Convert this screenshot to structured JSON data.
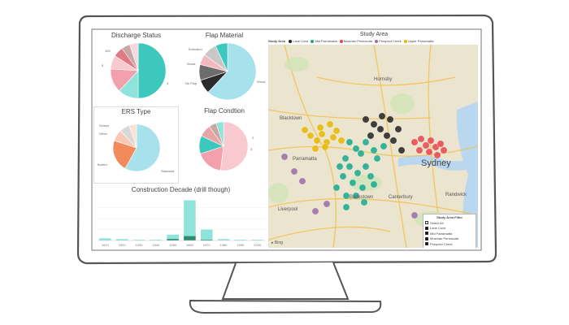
{
  "dashboard": {
    "discharge_status": {
      "title": "Discharge Status",
      "labels": [
        "100",
        "5",
        "4"
      ],
      "slice_colors": [
        "#3cc8bd",
        "#8ee3db",
        "#f2a0ab",
        "#f8c9cf",
        "#e07b85",
        "#c9a7a5",
        "#f3d9dd"
      ],
      "shares": [
        0.5,
        0.12,
        0.14,
        0.08,
        0.06,
        0.05,
        0.05
      ]
    },
    "flap_material": {
      "title": "Flap Material",
      "labels": [
        "Extrusion",
        "Wood",
        "No Flap",
        "Wood"
      ],
      "slice_colors": [
        "#a7e1ec",
        "#2b2b2b",
        "#6d6d6d",
        "#f2b8be",
        "#c8c8c8",
        "#3cc8bd"
      ],
      "shares": [
        0.62,
        0.08,
        0.09,
        0.06,
        0.08,
        0.07
      ]
    },
    "ers_type": {
      "title": "ERS Type",
      "labels": [
        "Gravel",
        "Other",
        "Standard",
        "Buried"
      ],
      "slice_colors": [
        "#a7e1ec",
        "#f38a5c",
        "#f8c9b6",
        "#d9d9d9",
        "#fbe0d4"
      ],
      "shares": [
        0.58,
        0.22,
        0.08,
        0.07,
        0.05
      ]
    },
    "flap_condition": {
      "title": "Flap Condtion",
      "labels": [
        "2",
        "3"
      ],
      "slice_colors": [
        "#f8c9cf",
        "#f2a0ab",
        "#3cc8bd",
        "#e8a5a5",
        "#c9a7a5",
        "#8ee3db"
      ],
      "shares": [
        0.52,
        0.18,
        0.12,
        0.08,
        0.05,
        0.05
      ]
    },
    "construction": {
      "title": "Construction Decade (drill though)",
      "chart_data": {
        "type": "bar",
        "categories": [
          "1910",
          "1920",
          "1930",
          "1940",
          "1950",
          "1960",
          "1970",
          "1980",
          "1990",
          "2000"
        ],
        "series": [
          {
            "color": "#8ee3db",
            "values": [
              3,
              2,
              1,
              1,
              8,
              55,
              15,
              2,
              1,
              1
            ]
          },
          {
            "color": "#2e8b72",
            "values": [
              0,
              0,
              0,
              0,
              2,
              6,
              1,
              0,
              0,
              0
            ]
          }
        ],
        "ylim": [
          0,
          60
        ]
      }
    }
  },
  "map": {
    "title": "Study Area",
    "legend_label": "Study Area",
    "legend": [
      {
        "name": "Lane Cove",
        "color": "#222222"
      },
      {
        "name": "Mid Parramatta",
        "color": "#1aa98e"
      },
      {
        "name": "Mosman Peninsular",
        "color": "#e8464b"
      },
      {
        "name": "Prospect Creek",
        "color": "#9b6fa5"
      },
      {
        "name": "Upper Parramatta",
        "color": "#e8b800"
      }
    ],
    "places": [
      "Hornsby",
      "Blacktown",
      "Parramatta",
      "Bankstown",
      "Canterbury",
      "Sydney",
      "Randwick",
      "Liverpool"
    ],
    "attribution": "Bing",
    "filter": {
      "title": "Study Area Filter",
      "items": [
        {
          "label": "Select All",
          "checked": false
        },
        {
          "label": "Lane Cove",
          "checked": true
        },
        {
          "label": "Mid Parramatta",
          "checked": true
        },
        {
          "label": "Mosman Peninsular",
          "checked": true
        },
        {
          "label": "Prospect Creek",
          "checked": true
        },
        {
          "label": "Upper Parramatta",
          "checked": true
        }
      ]
    }
  }
}
